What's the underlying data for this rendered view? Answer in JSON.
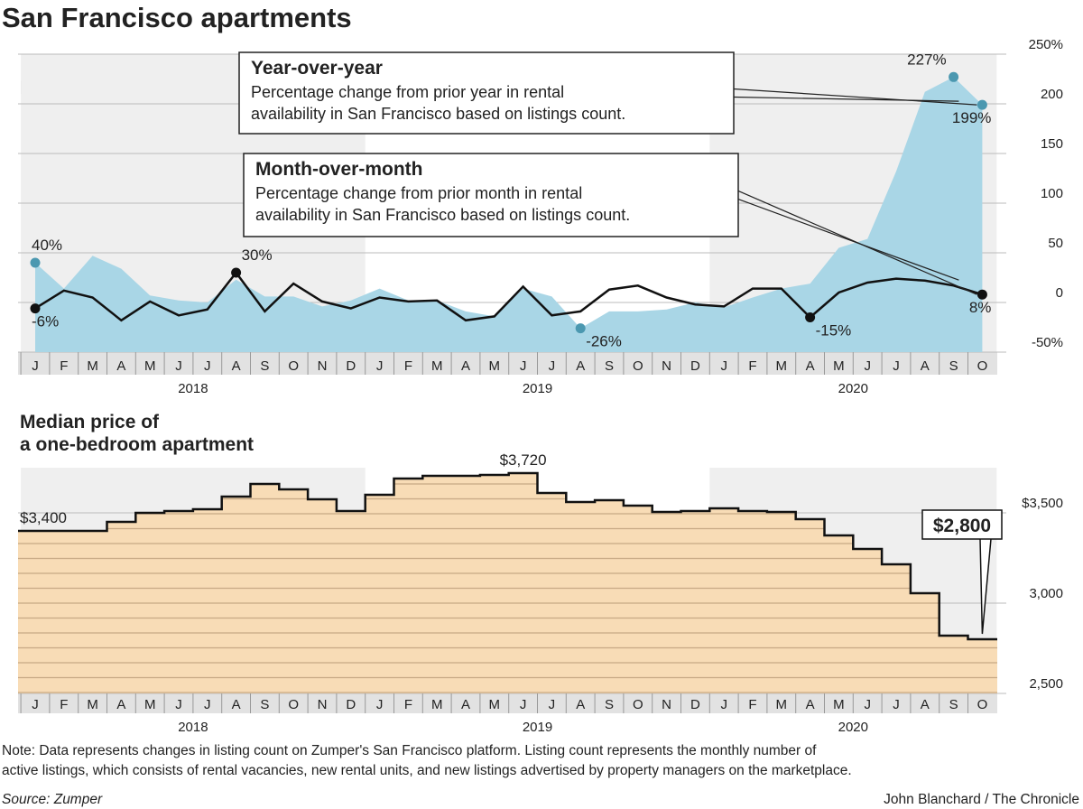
{
  "title": "San Francisco apartments",
  "note": [
    "Note: Data represents changes in listing count on Zumper's San Francisco platform. Listing count represents the monthly number of",
    "active listings, which consists of rental vacancies, new rental units, and new listings advertised by property managers on the marketplace."
  ],
  "source": "Source: Zumper",
  "credit": "John Blanchard / The Chronicle",
  "chart_data": [
    {
      "type": "line",
      "title": "Listings",
      "categories": [
        "J",
        "F",
        "M",
        "A",
        "M",
        "J",
        "J",
        "A",
        "S",
        "O",
        "N",
        "D",
        "J",
        "F",
        "M",
        "A",
        "M",
        "J",
        "J",
        "A",
        "S",
        "O",
        "N",
        "D",
        "J",
        "F",
        "M",
        "A",
        "M",
        "J",
        "J",
        "A",
        "S",
        "O"
      ],
      "years": [
        "2018",
        "2019",
        "2020"
      ],
      "ylim": [
        -50,
        250
      ],
      "yticks": [
        {
          "value": -50,
          "label": "-50%"
        },
        0,
        50,
        100,
        150,
        200,
        {
          "value": 250,
          "label": "250%"
        }
      ],
      "grid": true,
      "series": [
        {
          "name": "Year-over-year",
          "fill": true,
          "color": "#a9d6e6",
          "dot_color": "#4b98b0",
          "description": [
            "Percentage change from prior year in rental",
            "availability in San Francisco based on listings count."
          ],
          "values": [
            40,
            14,
            47,
            34,
            7,
            2,
            0,
            23,
            6,
            6,
            -4,
            2,
            14,
            2,
            2,
            -9,
            -14,
            14,
            6,
            -26,
            -9,
            -9,
            -7,
            0,
            -5,
            5,
            14,
            19,
            55,
            64,
            132,
            212,
            227,
            199
          ],
          "value_labels": [
            "40%",
            null,
            null,
            null,
            null,
            null,
            null,
            null,
            null,
            null,
            null,
            null,
            null,
            null,
            null,
            null,
            null,
            null,
            null,
            "-26%",
            null,
            null,
            null,
            null,
            null,
            null,
            null,
            null,
            null,
            null,
            null,
            null,
            "227%",
            "199%"
          ]
        },
        {
          "name": "Month-over-month",
          "fill": false,
          "color": "#111111",
          "dot_color": "#111111",
          "description": [
            "Percentage change from prior month in rental",
            "availability in San Francisco based on listings count."
          ],
          "values": [
            -6,
            12,
            5,
            -18,
            1,
            -13,
            -7,
            30,
            -9,
            19,
            1,
            -6,
            5,
            1,
            2,
            -18,
            -14,
            16,
            -13,
            -9,
            13,
            17,
            5,
            -2,
            -4,
            14,
            14,
            -15,
            10,
            20,
            24,
            22,
            17,
            8
          ],
          "value_labels": [
            "-6%",
            null,
            null,
            null,
            null,
            null,
            null,
            "30%",
            null,
            null,
            null,
            null,
            null,
            null,
            null,
            null,
            null,
            null,
            null,
            null,
            null,
            null,
            null,
            null,
            null,
            null,
            null,
            "-15%",
            null,
            null,
            null,
            null,
            null,
            "8%"
          ]
        }
      ]
    },
    {
      "type": "step",
      "title": [
        "Median price of",
        "a one-bedroom apartment"
      ],
      "categories": [
        "J",
        "F",
        "M",
        "A",
        "M",
        "J",
        "J",
        "A",
        "S",
        "O",
        "N",
        "D",
        "J",
        "F",
        "M",
        "A",
        "M",
        "J",
        "J",
        "A",
        "S",
        "O",
        "N",
        "D",
        "J",
        "F",
        "M",
        "A",
        "M",
        "J",
        "J",
        "A",
        "S",
        "O"
      ],
      "years": [
        "2018",
        "2019",
        "2020"
      ],
      "ylim": [
        2500,
        3750
      ],
      "yticks": [
        {
          "value": 2500,
          "label": "2,500"
        },
        {
          "value": 3000,
          "label": "3,000"
        },
        {
          "value": 3500,
          "label": "$3,500"
        }
      ],
      "grid": true,
      "color": "#f8dcb6",
      "values": [
        3400,
        3400,
        3400,
        3450,
        3500,
        3510,
        3520,
        3590,
        3660,
        3630,
        3575,
        3510,
        3600,
        3690,
        3705,
        3705,
        3710,
        3720,
        3610,
        3560,
        3570,
        3540,
        3505,
        3510,
        3525,
        3510,
        3505,
        3465,
        3375,
        3300,
        3215,
        3055,
        2820,
        2800
      ],
      "value_labels": [
        "$3,400",
        null,
        null,
        null,
        null,
        null,
        null,
        null,
        null,
        null,
        null,
        null,
        null,
        null,
        null,
        null,
        null,
        "$3,720",
        null,
        null,
        null,
        null,
        null,
        null,
        null,
        null,
        null,
        null,
        null,
        null,
        null,
        null,
        null,
        "$2,800"
      ]
    }
  ]
}
